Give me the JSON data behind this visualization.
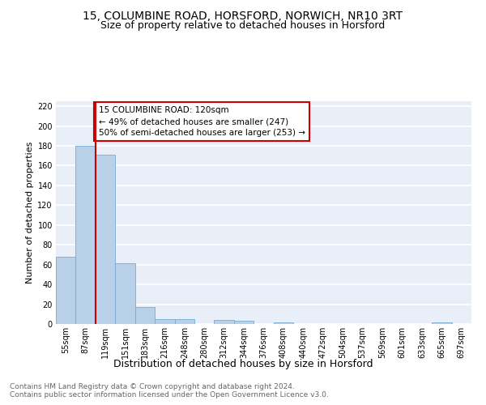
{
  "title1": "15, COLUMBINE ROAD, HORSFORD, NORWICH, NR10 3RT",
  "title2": "Size of property relative to detached houses in Horsford",
  "xlabel": "Distribution of detached houses by size in Horsford",
  "ylabel": "Number of detached properties",
  "bins": [
    "55sqm",
    "87sqm",
    "119sqm",
    "151sqm",
    "183sqm",
    "216sqm",
    "248sqm",
    "280sqm",
    "312sqm",
    "344sqm",
    "376sqm",
    "408sqm",
    "440sqm",
    "472sqm",
    "504sqm",
    "537sqm",
    "569sqm",
    "601sqm",
    "633sqm",
    "665sqm",
    "697sqm"
  ],
  "values": [
    68,
    180,
    171,
    61,
    17,
    5,
    5,
    0,
    4,
    3,
    0,
    2,
    0,
    0,
    0,
    0,
    0,
    0,
    0,
    2,
    0
  ],
  "bar_color": "#b8d0e8",
  "bar_edge_color": "#7aaacf",
  "bg_color": "#e8eff8",
  "vline_x_index": 2,
  "vline_color": "#cc0000",
  "annotation_text": "15 COLUMBINE ROAD: 120sqm\n← 49% of detached houses are smaller (247)\n50% of semi-detached houses are larger (253) →",
  "annotation_box_facecolor": "#ffffff",
  "annotation_box_edgecolor": "#cc0000",
  "ylim": [
    0,
    225
  ],
  "yticks": [
    0,
    20,
    40,
    60,
    80,
    100,
    120,
    140,
    160,
    180,
    200,
    220
  ],
  "footnote": "Contains HM Land Registry data © Crown copyright and database right 2024.\nContains public sector information licensed under the Open Government Licence v3.0.",
  "title1_fontsize": 10,
  "title2_fontsize": 9,
  "tick_fontsize": 7,
  "ylabel_fontsize": 8,
  "xlabel_fontsize": 9,
  "annotation_fontsize": 7.5,
  "footnote_fontsize": 6.5
}
